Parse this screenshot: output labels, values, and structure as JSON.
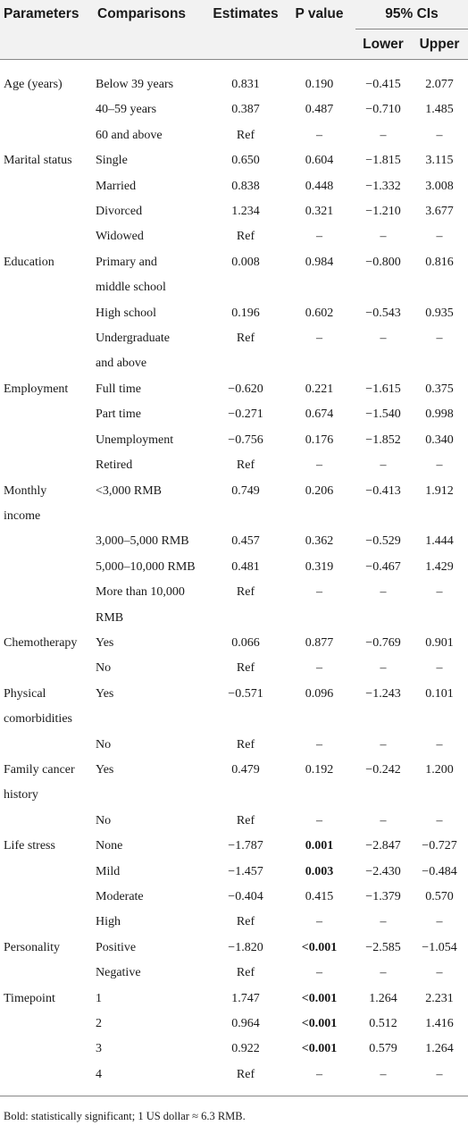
{
  "header": {
    "parameters": "Parameters",
    "comparisons": "Comparisons",
    "estimates": "Estimates",
    "p_value": "P value",
    "ci": "95% CIs",
    "lower": "Lower",
    "upper": "Upper"
  },
  "rows": [
    {
      "param": [
        "Age (years)"
      ],
      "comp": [
        "Below 39 years"
      ],
      "est": "0.831",
      "p": "0.190",
      "lo": "−0.415",
      "up": "2.077",
      "bold": false
    },
    {
      "param": [],
      "comp": [
        "40–59 years"
      ],
      "est": "0.387",
      "p": "0.487",
      "lo": "−0.710",
      "up": "1.485",
      "bold": false
    },
    {
      "param": [],
      "comp": [
        "60 and above"
      ],
      "est": "Ref",
      "p": "–",
      "lo": "–",
      "up": "–",
      "bold": false
    },
    {
      "param": [
        "Marital status"
      ],
      "comp": [
        "Single"
      ],
      "est": "0.650",
      "p": "0.604",
      "lo": "−1.815",
      "up": "3.115",
      "bold": false
    },
    {
      "param": [],
      "comp": [
        "Married"
      ],
      "est": "0.838",
      "p": "0.448",
      "lo": "−1.332",
      "up": "3.008",
      "bold": false
    },
    {
      "param": [],
      "comp": [
        "Divorced"
      ],
      "est": "1.234",
      "p": "0.321",
      "lo": "−1.210",
      "up": "3.677",
      "bold": false
    },
    {
      "param": [],
      "comp": [
        "Widowed"
      ],
      "est": "Ref",
      "p": "–",
      "lo": "–",
      "up": "–",
      "bold": false
    },
    {
      "param": [
        "Education"
      ],
      "comp": [
        "Primary and",
        "middle school"
      ],
      "est": "0.008",
      "p": "0.984",
      "lo": "−0.800",
      "up": "0.816",
      "bold": false
    },
    {
      "param": [],
      "comp": [
        "High school"
      ],
      "est": "0.196",
      "p": "0.602",
      "lo": "−0.543",
      "up": "0.935",
      "bold": false
    },
    {
      "param": [],
      "comp": [
        "Undergraduate",
        "and above"
      ],
      "est": "Ref",
      "p": "–",
      "lo": "–",
      "up": "–",
      "bold": false
    },
    {
      "param": [
        "Employment"
      ],
      "comp": [
        "Full time"
      ],
      "est": "−0.620",
      "p": "0.221",
      "lo": "−1.615",
      "up": "0.375",
      "bold": false
    },
    {
      "param": [],
      "comp": [
        "Part time"
      ],
      "est": "−0.271",
      "p": "0.674",
      "lo": "−1.540",
      "up": "0.998",
      "bold": false
    },
    {
      "param": [],
      "comp": [
        "Unemployment"
      ],
      "est": "−0.756",
      "p": "0.176",
      "lo": "−1.852",
      "up": "0.340",
      "bold": false
    },
    {
      "param": [],
      "comp": [
        "Retired"
      ],
      "est": "Ref",
      "p": "–",
      "lo": "–",
      "up": "–",
      "bold": false
    },
    {
      "param": [
        "Monthly",
        "income"
      ],
      "comp": [
        "<3,000 RMB"
      ],
      "est": "0.749",
      "p": "0.206",
      "lo": "−0.413",
      "up": "1.912",
      "bold": false
    },
    {
      "param": [],
      "comp": [
        "3,000–5,000 RMB"
      ],
      "est": "0.457",
      "p": "0.362",
      "lo": "−0.529",
      "up": "1.444",
      "bold": false
    },
    {
      "param": [],
      "comp": [
        "5,000–10,000 RMB"
      ],
      "est": "0.481",
      "p": "0.319",
      "lo": "−0.467",
      "up": "1.429",
      "bold": false
    },
    {
      "param": [],
      "comp": [
        "More than 10,000",
        "RMB"
      ],
      "est": "Ref",
      "p": "–",
      "lo": "–",
      "up": "–",
      "bold": false
    },
    {
      "param": [
        "Chemotherapy"
      ],
      "comp": [
        "Yes"
      ],
      "est": "0.066",
      "p": "0.877",
      "lo": "−0.769",
      "up": "0.901",
      "bold": false
    },
    {
      "param": [],
      "comp": [
        "No"
      ],
      "est": "Ref",
      "p": "–",
      "lo": "–",
      "up": "–",
      "bold": false
    },
    {
      "param": [
        "Physical",
        "comorbidities"
      ],
      "comp": [
        "Yes"
      ],
      "est": "−0.571",
      "p": "0.096",
      "lo": "−1.243",
      "up": "0.101",
      "bold": false
    },
    {
      "param": [],
      "comp": [
        "No"
      ],
      "est": "Ref",
      "p": "–",
      "lo": "–",
      "up": "–",
      "bold": false
    },
    {
      "param": [
        "Family cancer",
        "history"
      ],
      "comp": [
        "Yes"
      ],
      "est": "0.479",
      "p": "0.192",
      "lo": "−0.242",
      "up": "1.200",
      "bold": false
    },
    {
      "param": [],
      "comp": [
        "No"
      ],
      "est": "Ref",
      "p": "–",
      "lo": "–",
      "up": "–",
      "bold": false
    },
    {
      "param": [
        "Life stress"
      ],
      "comp": [
        "None"
      ],
      "est": "−1.787",
      "p": "0.001",
      "lo": "−2.847",
      "up": "−0.727",
      "bold": true
    },
    {
      "param": [],
      "comp": [
        "Mild"
      ],
      "est": "−1.457",
      "p": "0.003",
      "lo": "−2.430",
      "up": "−0.484",
      "bold": true
    },
    {
      "param": [],
      "comp": [
        "Moderate"
      ],
      "est": "−0.404",
      "p": "0.415",
      "lo": "−1.379",
      "up": "0.570",
      "bold": false
    },
    {
      "param": [],
      "comp": [
        "High"
      ],
      "est": "Ref",
      "p": "–",
      "lo": "–",
      "up": "–",
      "bold": false
    },
    {
      "param": [
        "Personality"
      ],
      "comp": [
        "Positive"
      ],
      "est": "−1.820",
      "p": "<0.001",
      "lo": "−2.585",
      "up": "−1.054",
      "bold": true
    },
    {
      "param": [],
      "comp": [
        "Negative"
      ],
      "est": "Ref",
      "p": "–",
      "lo": "–",
      "up": "–",
      "bold": false
    },
    {
      "param": [
        "Timepoint"
      ],
      "comp": [
        "1"
      ],
      "est": "1.747",
      "p": "<0.001",
      "lo": "1.264",
      "up": "2.231",
      "bold": true
    },
    {
      "param": [],
      "comp": [
        "2"
      ],
      "est": "0.964",
      "p": "<0.001",
      "lo": "0.512",
      "up": "1.416",
      "bold": true
    },
    {
      "param": [],
      "comp": [
        "3"
      ],
      "est": "0.922",
      "p": "<0.001",
      "lo": "0.579",
      "up": "1.264",
      "bold": true
    },
    {
      "param": [],
      "comp": [
        "4"
      ],
      "est": "Ref",
      "p": "–",
      "lo": "–",
      "up": "–",
      "bold": false
    }
  ],
  "footnote": "Bold: statistically significant; 1 US dollar ≈ 6.3 RMB."
}
